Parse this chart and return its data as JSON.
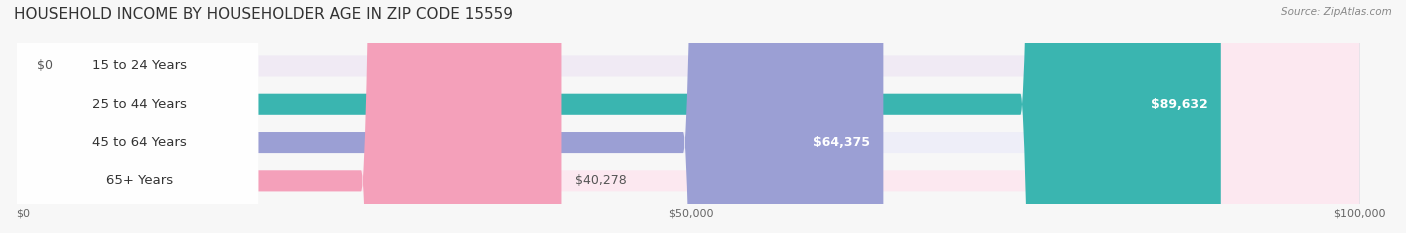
{
  "title": "HOUSEHOLD INCOME BY HOUSEHOLDER AGE IN ZIP CODE 15559",
  "source": "Source: ZipAtlas.com",
  "categories": [
    "15 to 24 Years",
    "25 to 44 Years",
    "45 to 64 Years",
    "65+ Years"
  ],
  "values": [
    0,
    89632,
    64375,
    40278
  ],
  "bar_colors": [
    "#c9a8d4",
    "#3ab5b0",
    "#9b9fd4",
    "#f4a0ba"
  ],
  "bg_colors": [
    "#f0eaf4",
    "#e0f4f4",
    "#eeeef8",
    "#fce8f0"
  ],
  "max_value": 100000,
  "xticks": [
    0,
    50000,
    100000
  ],
  "xtick_labels": [
    "$0",
    "$50,000",
    "$100,000"
  ],
  "value_labels": [
    "$0",
    "$89,632",
    "$64,375",
    "$40,278"
  ],
  "background_color": "#f7f7f7",
  "title_fontsize": 11,
  "bar_height": 0.55,
  "label_fontsize": 9.5
}
